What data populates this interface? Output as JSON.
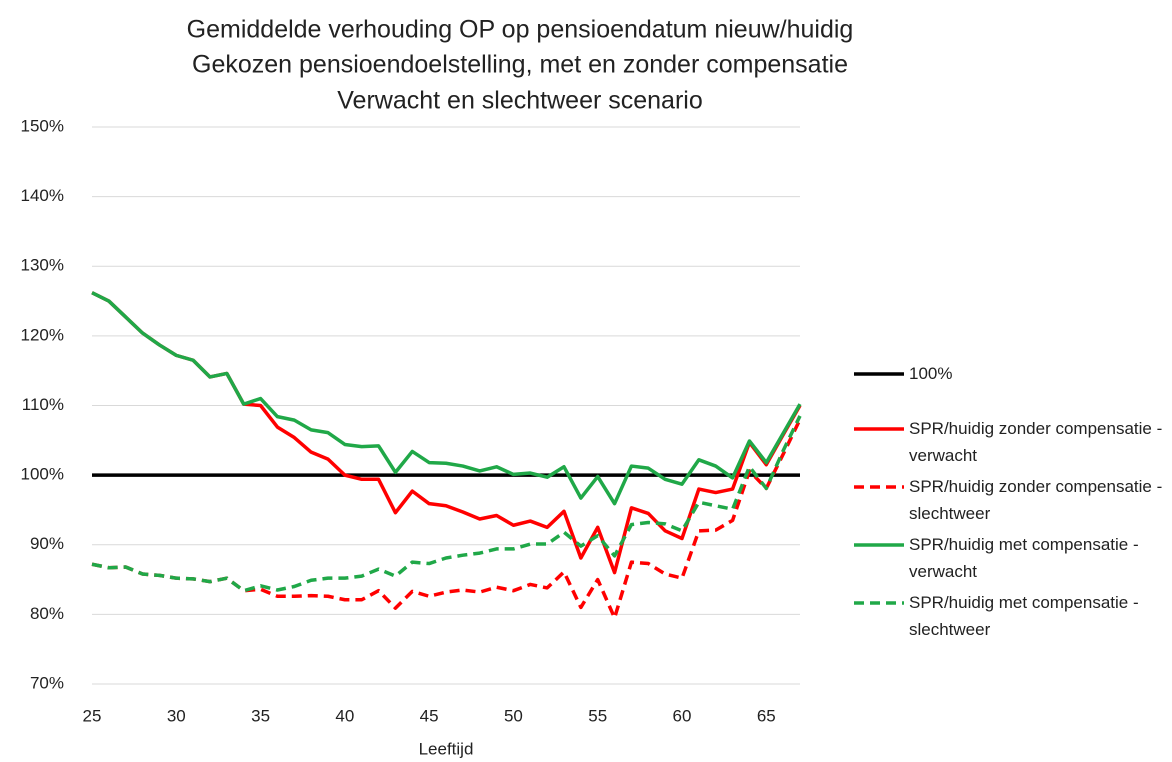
{
  "chart_data": {
    "type": "line",
    "title": [
      "Gemiddelde verhouding OP op pensioendatum nieuw/huidig",
      "Gekozen pensioendoelstelling, met en zonder compensatie",
      "Verwacht en slechtweer scenario"
    ],
    "xlabel": "Leeftijd",
    "x": [
      25,
      26,
      27,
      28,
      29,
      30,
      31,
      32,
      33,
      34,
      35,
      36,
      37,
      38,
      39,
      40,
      41,
      42,
      43,
      44,
      45,
      46,
      47,
      48,
      49,
      50,
      51,
      52,
      53,
      54,
      55,
      56,
      57,
      58,
      59,
      60,
      61,
      62,
      63,
      64,
      65,
      66,
      67
    ],
    "xlim": [
      25,
      67
    ],
    "xticks": [
      25,
      30,
      35,
      40,
      45,
      50,
      55,
      60,
      65
    ],
    "ylim": [
      70,
      150
    ],
    "yticks": [
      {
        "value": 70,
        "label": "70%"
      },
      {
        "value": 80,
        "label": "80%"
      },
      {
        "value": 90,
        "label": "90%"
      },
      {
        "value": 100,
        "label": "100%"
      },
      {
        "value": 110,
        "label": "110%"
      },
      {
        "value": 120,
        "label": "120%"
      },
      {
        "value": 130,
        "label": "130%"
      },
      {
        "value": 140,
        "label": "140%"
      },
      {
        "value": 150,
        "label": "150%"
      }
    ],
    "grid": true,
    "legend": "right",
    "series": [
      {
        "name": "100%",
        "color": "#000000",
        "style": "solid",
        "values": [
          100,
          100,
          100,
          100,
          100,
          100,
          100,
          100,
          100,
          100,
          100,
          100,
          100,
          100,
          100,
          100,
          100,
          100,
          100,
          100,
          100,
          100,
          100,
          100,
          100,
          100,
          100,
          100,
          100,
          100,
          100,
          100,
          100,
          100,
          100,
          100,
          100,
          100,
          100,
          100,
          100,
          100,
          100
        ]
      },
      {
        "name": "SPR/huidig zonder compensatie - verwacht",
        "color": "#ff0000",
        "style": "solid",
        "values": [
          126.2,
          125.0,
          122.7,
          120.4,
          118.7,
          117.2,
          116.5,
          114.1,
          114.6,
          110.2,
          110.0,
          106.9,
          105.4,
          103.3,
          102.3,
          100.0,
          99.4,
          99.4,
          94.6,
          97.7,
          95.9,
          95.6,
          94.7,
          93.7,
          94.2,
          92.8,
          93.4,
          92.5,
          94.8,
          88.1,
          92.5,
          86.0,
          95.3,
          94.5,
          92.0,
          90.9,
          98.0,
          97.5,
          98.0,
          104.7,
          101.5,
          105.8,
          110.0
        ]
      },
      {
        "name": "SPR/huidig zonder compensatie - slechtweer",
        "color": "#ff0000",
        "style": "dashed",
        "values": [
          87.2,
          86.7,
          86.8,
          85.8,
          85.6,
          85.2,
          85.1,
          84.7,
          85.2,
          83.4,
          83.6,
          82.6,
          82.6,
          82.7,
          82.6,
          82.1,
          82.1,
          83.4,
          80.9,
          83.3,
          82.6,
          83.2,
          83.5,
          83.2,
          83.9,
          83.4,
          84.3,
          83.8,
          86.1,
          81.0,
          85.0,
          79.5,
          87.5,
          87.3,
          85.8,
          85.2,
          92.0,
          92.1,
          93.5,
          100.6,
          98.1,
          103.0,
          108.0
        ]
      },
      {
        "name": "SPR/huidig met compensatie - verwacht",
        "color": "#20a848",
        "style": "solid",
        "values": [
          126.2,
          125.0,
          122.7,
          120.4,
          118.7,
          117.2,
          116.5,
          114.1,
          114.6,
          110.2,
          111.0,
          108.4,
          107.9,
          106.5,
          106.1,
          104.4,
          104.1,
          104.2,
          100.4,
          103.4,
          101.8,
          101.7,
          101.3,
          100.6,
          101.2,
          100.1,
          100.3,
          99.7,
          101.2,
          96.7,
          99.8,
          95.9,
          101.3,
          101.0,
          99.4,
          98.7,
          102.2,
          101.3,
          99.6,
          104.9,
          101.8,
          106.0,
          110.2
        ]
      },
      {
        "name": "SPR/huidig met compensatie - slechtweer",
        "color": "#20a848",
        "style": "dashed",
        "values": [
          87.2,
          86.7,
          86.8,
          85.8,
          85.6,
          85.2,
          85.1,
          84.7,
          85.2,
          83.4,
          84.1,
          83.5,
          84.0,
          84.9,
          85.2,
          85.2,
          85.5,
          86.5,
          85.5,
          87.5,
          87.3,
          88.1,
          88.5,
          88.8,
          89.4,
          89.4,
          90.1,
          90.1,
          91.8,
          89.8,
          91.3,
          88.4,
          92.9,
          93.2,
          93.0,
          92.0,
          96.1,
          95.6,
          95.1,
          101.2,
          98.1,
          103.5,
          108.5
        ]
      }
    ]
  }
}
